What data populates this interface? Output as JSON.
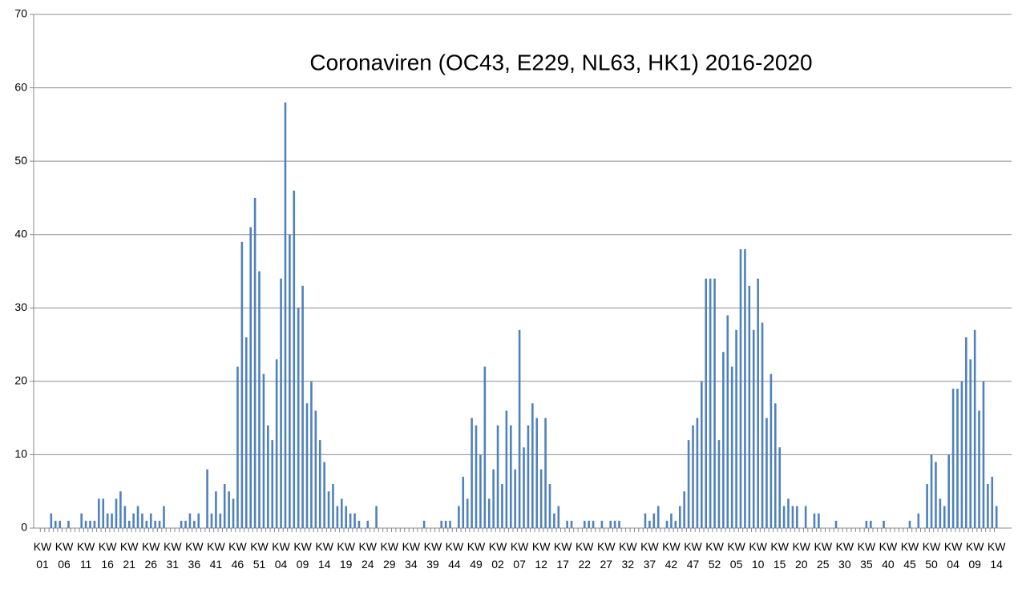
{
  "chart_data": {
    "type": "bar",
    "title": "Coronaviren (OC43, E229, NL63, HK1) 2016-2020",
    "color": "#4f81bd",
    "grid": true,
    "ylim": [
      0,
      70
    ],
    "yticks": [
      0,
      10,
      20,
      30,
      40,
      50,
      60,
      70
    ],
    "categories": [
      "KW 01",
      null,
      null,
      null,
      null,
      "KW 06",
      null,
      null,
      null,
      null,
      "KW 11",
      null,
      null,
      null,
      null,
      "KW 16",
      null,
      null,
      null,
      null,
      "KW 21",
      null,
      null,
      null,
      null,
      "KW 26",
      null,
      null,
      null,
      null,
      "KW 31",
      null,
      null,
      null,
      null,
      "KW 36",
      null,
      null,
      null,
      null,
      "KW 41",
      null,
      null,
      null,
      null,
      "KW 46",
      null,
      null,
      null,
      null,
      "KW 51",
      null,
      null,
      null,
      null,
      "KW 04",
      null,
      null,
      null,
      null,
      "KW 09",
      null,
      null,
      null,
      null,
      "KW 14",
      null,
      null,
      null,
      null,
      "KW 19",
      null,
      null,
      null,
      null,
      "KW 24",
      null,
      null,
      null,
      null,
      "KW 29",
      null,
      null,
      null,
      null,
      "KW 34",
      null,
      null,
      null,
      null,
      "KW 39",
      null,
      null,
      null,
      null,
      "KW 44",
      null,
      null,
      null,
      null,
      "KW 49",
      null,
      null,
      null,
      null,
      "KW 02",
      null,
      null,
      null,
      null,
      "KW 07",
      null,
      null,
      null,
      null,
      "KW 12",
      null,
      null,
      null,
      null,
      "KW 17",
      null,
      null,
      null,
      null,
      "KW 22",
      null,
      null,
      null,
      null,
      "KW 27",
      null,
      null,
      null,
      null,
      "KW 32",
      null,
      null,
      null,
      null,
      "KW 37",
      null,
      null,
      null,
      null,
      "KW 42",
      null,
      null,
      null,
      null,
      "KW 47",
      null,
      null,
      null,
      null,
      "KW 52",
      null,
      null,
      null,
      null,
      "KW 05",
      null,
      null,
      null,
      null,
      "KW 10",
      null,
      null,
      null,
      null,
      "KW 15",
      null,
      null,
      null,
      null,
      "KW 20",
      null,
      null,
      null,
      null,
      "KW 25",
      null,
      null,
      null,
      null,
      "KW 30",
      null,
      null,
      null,
      null,
      "KW 35",
      null,
      null,
      null,
      null,
      "KW 40",
      null,
      null,
      null,
      null,
      "KW 45",
      null,
      null,
      null,
      null,
      "KW 50",
      null,
      null,
      null,
      null,
      "KW 04",
      null,
      null,
      null,
      null,
      "KW 09",
      null,
      null,
      null,
      null,
      "KW 14"
    ],
    "values": [
      0,
      0,
      2,
      1,
      1,
      0,
      1,
      0,
      0,
      2,
      1,
      1,
      1,
      4,
      4,
      2,
      2,
      4,
      5,
      3,
      1,
      2,
      3,
      2,
      1,
      2,
      1,
      1,
      3,
      0,
      0,
      0,
      1,
      1,
      2,
      1,
      2,
      0,
      8,
      2,
      5,
      2,
      6,
      5,
      4,
      22,
      39,
      26,
      41,
      45,
      35,
      21,
      14,
      12,
      23,
      34,
      58,
      40,
      46,
      30,
      33,
      17,
      20,
      16,
      12,
      9,
      5,
      6,
      3,
      4,
      3,
      2,
      2,
      1,
      0,
      1,
      0,
      3,
      0,
      0,
      0,
      0,
      0,
      0,
      0,
      0,
      0,
      0,
      1,
      0,
      0,
      0,
      1,
      1,
      1,
      0,
      3,
      7,
      4,
      15,
      14,
      10,
      22,
      4,
      8,
      14,
      6,
      16,
      14,
      8,
      27,
      11,
      14,
      17,
      15,
      8,
      15,
      6,
      2,
      3,
      0,
      1,
      1,
      0,
      0,
      1,
      1,
      1,
      0,
      1,
      0,
      1,
      1,
      1,
      0,
      0,
      0,
      0,
      0,
      2,
      1,
      2,
      3,
      0,
      1,
      2,
      1,
      3,
      5,
      12,
      14,
      15,
      20,
      34,
      34,
      34,
      12,
      24,
      29,
      22,
      27,
      38,
      38,
      33,
      27,
      34,
      28,
      15,
      21,
      17,
      11,
      3,
      4,
      3,
      3,
      0,
      3,
      0,
      2,
      2,
      0,
      0,
      0,
      1,
      0,
      0,
      0,
      0,
      0,
      0,
      1,
      1,
      0,
      0,
      1,
      0,
      0,
      0,
      0,
      0,
      1,
      0,
      2,
      0,
      6,
      10,
      9,
      4,
      3,
      10,
      19,
      19,
      20,
      26,
      23,
      27,
      16,
      20,
      6,
      7,
      3
    ]
  }
}
